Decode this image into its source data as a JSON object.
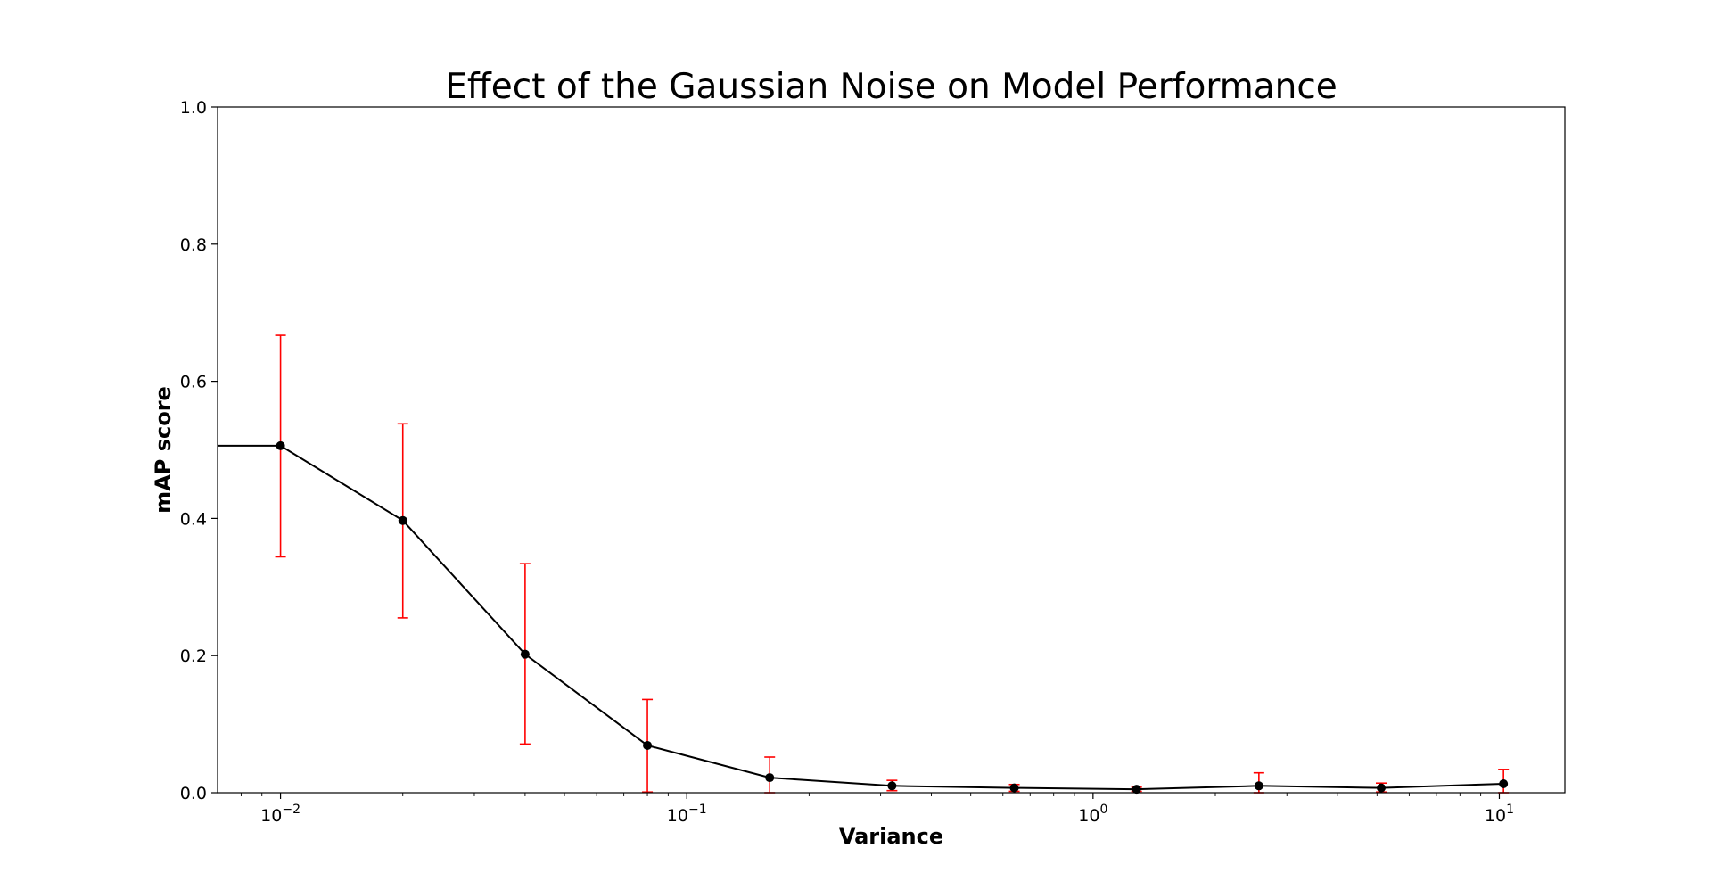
{
  "chart_data": {
    "type": "line",
    "title": "Effect of the Gaussian Noise on Model Performance",
    "xlabel": "Variance",
    "ylabel": "mAP score",
    "x_scale": "log",
    "xlim": [
      0.007,
      14.5
    ],
    "ylim": [
      0.0,
      1.0
    ],
    "grid": false,
    "x_ticks": [
      {
        "value": 0.01,
        "base": "10",
        "exp": "−2"
      },
      {
        "value": 0.1,
        "base": "10",
        "exp": "−1"
      },
      {
        "value": 1,
        "base": "10",
        "exp": "0"
      },
      {
        "value": 10,
        "base": "10",
        "exp": "1"
      }
    ],
    "y_ticks": [
      {
        "value": 0.0,
        "label": "0.0"
      },
      {
        "value": 0.2,
        "label": "0.2"
      },
      {
        "value": 0.4,
        "label": "0.4"
      },
      {
        "value": 0.6,
        "label": "0.6"
      },
      {
        "value": 0.8,
        "label": "0.8"
      },
      {
        "value": 1.0,
        "label": "1.0"
      }
    ],
    "series": [
      {
        "line_color": "#000000",
        "marker_color": "#000000",
        "error_color": "#ff0000",
        "x": [
          0.01,
          0.02,
          0.04,
          0.08,
          0.16,
          0.32,
          0.64,
          1.28,
          2.56,
          5.12,
          10.24
        ],
        "y": [
          0.506,
          0.397,
          0.202,
          0.069,
          0.022,
          0.01,
          0.007,
          0.005,
          0.01,
          0.007,
          0.013
        ],
        "y_low": [
          0.344,
          0.255,
          0.071,
          0.001,
          0.0,
          0.003,
          0.002,
          0.002,
          0.0,
          0.001,
          0.0
        ],
        "y_high": [
          0.667,
          0.538,
          0.334,
          0.136,
          0.052,
          0.018,
          0.012,
          0.008,
          0.029,
          0.014,
          0.034
        ]
      }
    ]
  }
}
